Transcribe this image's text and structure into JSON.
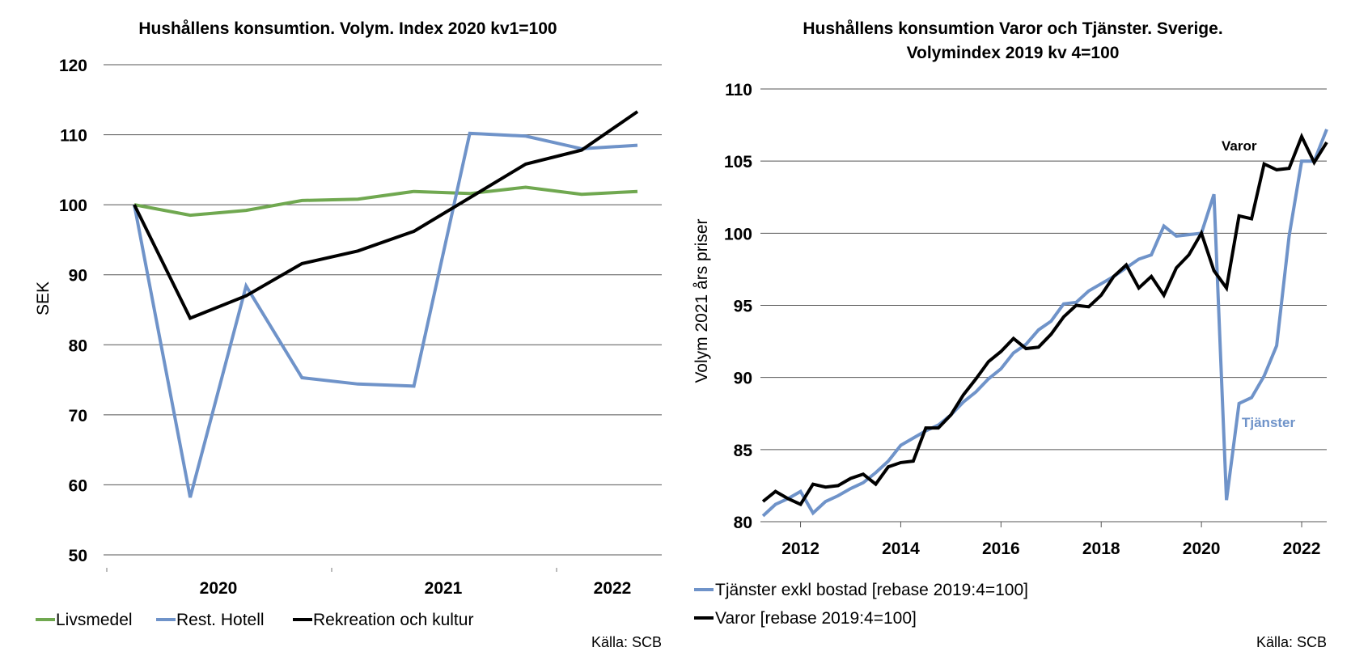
{
  "chart_data": [
    {
      "type": "line",
      "title": "Hushållens konsumtion. Volym. Index 2020 kv1=100",
      "ylabel": "SEK",
      "xlabel": "",
      "ylim": [
        50,
        120
      ],
      "yticks": [
        50,
        60,
        70,
        80,
        90,
        100,
        110,
        120
      ],
      "year_labels": [
        "2020",
        "2021",
        "2022"
      ],
      "grid": true,
      "legend_position": "bottom",
      "source": "Källa: SCB",
      "series": [
        {
          "name": "Livsmedel",
          "color": "#70a850",
          "values": [
            100,
            98.5,
            99.2,
            100.6,
            100.8,
            101.9,
            101.6,
            102.5,
            101.5,
            101.9
          ]
        },
        {
          "name": "Rest. Hotell",
          "color": "#6f93c9",
          "values": [
            100,
            58.2,
            88.4,
            75.3,
            74.4,
            74.1,
            110.2,
            109.8,
            108.0,
            108.5
          ]
        },
        {
          "name": "Rekreation och kultur",
          "color": "#000000",
          "values": [
            100,
            83.8,
            87.0,
            91.6,
            93.4,
            96.2,
            101.0,
            105.8,
            107.8,
            113.3
          ]
        }
      ]
    },
    {
      "type": "line",
      "title_lines": [
        "Hushållens konsumtion Varor och Tjänster. Sverige.",
        "Volymindex 2019 kv 4=100"
      ],
      "ylabel": "Volym 2021 års priser",
      "xlabel": "",
      "ylim": [
        80,
        110
      ],
      "xlim": [
        2011.2,
        2022.5
      ],
      "yticks": [
        80,
        85,
        90,
        95,
        100,
        105,
        110
      ],
      "xticks": [
        "2012",
        "2014",
        "2016",
        "2018",
        "2020",
        "2022"
      ],
      "grid": true,
      "legend_position": "bottom",
      "source": "Källa: SCB",
      "annotations": [
        {
          "text": "Varor",
          "color": "#000000"
        },
        {
          "text": "Tjänster",
          "color": "#6f93c9"
        }
      ],
      "x": [
        2011.25,
        2011.5,
        2011.75,
        2012.0,
        2012.25,
        2012.5,
        2012.75,
        2013.0,
        2013.25,
        2013.5,
        2013.75,
        2014.0,
        2014.25,
        2014.5,
        2014.75,
        2015.0,
        2015.25,
        2015.5,
        2015.75,
        2016.0,
        2016.25,
        2016.5,
        2016.75,
        2017.0,
        2017.25,
        2017.5,
        2017.75,
        2018.0,
        2018.25,
        2018.5,
        2018.75,
        2019.0,
        2019.25,
        2019.5,
        2019.75,
        2020.0,
        2020.25,
        2020.5,
        2020.75,
        2021.0,
        2021.25,
        2021.5,
        2021.75,
        2022.0,
        2022.25,
        2022.5
      ],
      "series": [
        {
          "name": "Tjänster exkl bostad [rebase 2019:4=100]",
          "color": "#6f93c9",
          "values": [
            80.4,
            81.2,
            81.6,
            82.1,
            80.6,
            81.4,
            81.8,
            82.3,
            82.7,
            83.4,
            84.2,
            85.3,
            85.8,
            86.3,
            86.7,
            87.4,
            88.3,
            89.0,
            89.9,
            90.6,
            91.7,
            92.3,
            93.3,
            93.9,
            95.1,
            95.2,
            96.0,
            96.5,
            97.0,
            97.6,
            98.2,
            98.5,
            100.5,
            99.8,
            99.9,
            100.0,
            102.7,
            81.5,
            88.2,
            88.6,
            90.1,
            92.2,
            99.8,
            105.0,
            105.0,
            107.2
          ]
        },
        {
          "name": "Varor [rebase 2019:4=100]",
          "color": "#000000",
          "values": [
            81.4,
            82.1,
            81.6,
            81.2,
            82.6,
            82.4,
            82.5,
            83.0,
            83.3,
            82.6,
            83.8,
            84.1,
            84.2,
            86.5,
            86.5,
            87.4,
            88.8,
            89.9,
            91.1,
            91.8,
            92.7,
            92.0,
            92.1,
            93.0,
            94.2,
            95.0,
            94.9,
            95.7,
            97.0,
            97.8,
            96.2,
            97.0,
            95.7,
            97.6,
            98.5,
            100.0,
            97.4,
            96.2,
            101.2,
            101.0,
            104.8,
            104.4,
            104.5,
            106.7,
            104.9,
            106.3
          ]
        }
      ]
    }
  ]
}
